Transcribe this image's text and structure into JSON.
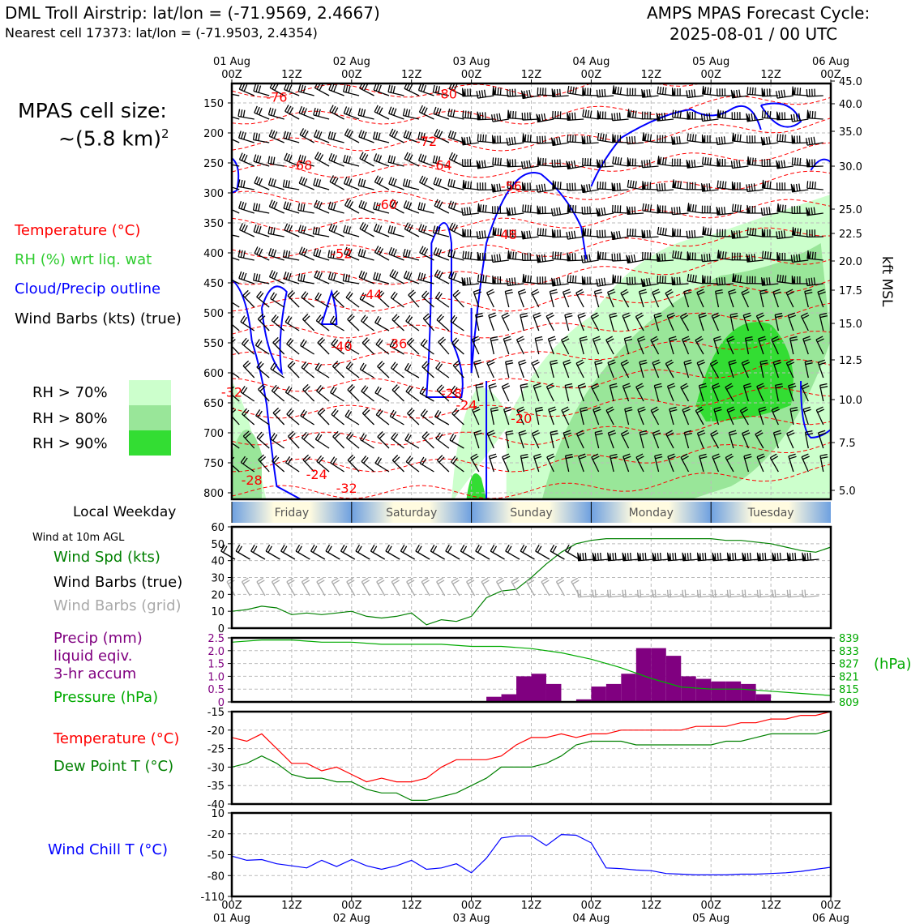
{
  "header": {
    "station_title": "DML Troll Airstrip: lat/lon = (-71.9569, 2.4667)",
    "cell_line": "Nearest cell 17373: lat/lon = (-71.9503, 2.4354)",
    "forecast_title": "AMPS MPAS Forecast Cycle:",
    "cycle_time": "2025-08-01 / 00 UTC"
  },
  "left_panel": {
    "cell_size_label": "MPAS cell size:",
    "cell_size_value": "~(5.8 km)",
    "cell_size_exp": "2",
    "legend_temperature": "Temperature (°C)",
    "legend_rh": "RH (%) wrt liq. wat",
    "legend_cloud": "Cloud/Precip outline",
    "legend_wind": "Wind Barbs (kts) (true)",
    "rh_70": "RH > 70%",
    "rh_80": "RH > 80%",
    "rh_90": "RH > 90%",
    "local_weekday": "Local Weekday",
    "wind_10m": "Wind at 10m AGL",
    "wind_spd": "Wind Spd (kts)",
    "wind_barbs_true": "Wind Barbs (true)",
    "wind_barbs_grid": "Wind Barbs (grid)",
    "precip_l1": "Precip (mm)",
    "precip_l2": "liquid eqiv.",
    "precip_l3": "3-hr accum",
    "pressure": "Pressure (hPa)",
    "pressure_unit": "(hPa)",
    "temp2": "Temperature (°C)",
    "dew": "Dew Point T (°C)",
    "chill": "Wind Chill T (°C)",
    "kft_label": "kft MSL"
  },
  "colors": {
    "temperature": "#ff0000",
    "dewpoint": "#008000",
    "rh_legend": "#2ecc2e",
    "cloud": "#0000ff",
    "precip": "#800080",
    "pressure": "#00aa00",
    "grid_barbs": "#a9a9a9",
    "rh70": "#ccffcc",
    "rh80": "#99e699",
    "rh90": "#33dd33"
  },
  "chart_data": [
    {
      "type": "heatmap",
      "name": "cross-section",
      "x_top_dates": [
        "01 Aug",
        "02 Aug",
        "03 Aug",
        "04 Aug",
        "05 Aug",
        "06 Aug"
      ],
      "x_top_ticks": [
        "00Z",
        "12Z",
        "00Z",
        "12Z",
        "00Z",
        "12Z",
        "00Z",
        "12Z",
        "00Z",
        "12Z",
        "00Z"
      ],
      "y_left_ticks": [
        "150",
        "200",
        "250",
        "300",
        "350",
        "400",
        "450",
        "500",
        "550",
        "600",
        "650",
        "700",
        "750",
        "800"
      ],
      "y_right_ticks": [
        "45.0",
        "40.0",
        "35.0",
        "30.0",
        "25.0",
        "22.5",
        "20.0",
        "17.5",
        "15.0",
        "12.5",
        "10.0",
        "7.5",
        "5.0"
      ],
      "temperature_labels": [
        {
          "text": "-76",
          "hour": 9,
          "hpa": 141
        },
        {
          "text": "-80",
          "hour": 43,
          "hpa": 136
        },
        {
          "text": "-72",
          "hour": 39,
          "hpa": 215
        },
        {
          "text": "-68",
          "hour": 14,
          "hpa": 255
        },
        {
          "text": "-64",
          "hour": 42,
          "hpa": 255
        },
        {
          "text": "-60",
          "hour": 31,
          "hpa": 320
        },
        {
          "text": "-56",
          "hour": 56,
          "hpa": 290
        },
        {
          "text": "-48",
          "hour": 55,
          "hpa": 370
        },
        {
          "text": "-52",
          "hour": 22,
          "hpa": 402
        },
        {
          "text": "-44",
          "hour": 28,
          "hpa": 470
        },
        {
          "text": "-40",
          "hour": 22,
          "hpa": 557
        },
        {
          "text": "-36",
          "hour": 33,
          "hpa": 552
        },
        {
          "text": "-32",
          "hour": 0,
          "hpa": 633
        },
        {
          "text": "-28",
          "hour": 44,
          "hpa": 635
        },
        {
          "text": "-24",
          "hour": 47,
          "hpa": 655
        },
        {
          "text": "-20",
          "hour": 58,
          "hpa": 677
        },
        {
          "text": "-24",
          "hour": 17,
          "hpa": 770
        },
        {
          "text": "-28",
          "hour": 4,
          "hpa": 780
        },
        {
          "text": "-32",
          "hour": 23,
          "hpa": 793
        }
      ]
    },
    {
      "type": "line",
      "name": "wind speed",
      "ylim": [
        0,
        60
      ],
      "yticks": [
        "60",
        "50",
        "40",
        "30",
        "20",
        "10",
        "0"
      ],
      "x_hours": [
        0,
        3,
        6,
        9,
        12,
        15,
        18,
        21,
        24,
        27,
        30,
        33,
        36,
        39,
        42,
        45,
        48,
        51,
        54,
        57,
        60
      ],
      "series": [
        {
          "name": "Wind Spd (kts)",
          "values": [
            10,
            11,
            13,
            12,
            8,
            9,
            8,
            9,
            10,
            7,
            6,
            7,
            9,
            2,
            5,
            4,
            7,
            18,
            22,
            23,
            30
          ]
        }
      ],
      "extra_x_hours": [
        63,
        66,
        69,
        72,
        75,
        78,
        81,
        84,
        87,
        90,
        93,
        96,
        99,
        102,
        105,
        108,
        111,
        114,
        117,
        120
      ],
      "extra_values": [
        38,
        45,
        50,
        52,
        53,
        53,
        53,
        53,
        53,
        53,
        53,
        53,
        52,
        52,
        51,
        50,
        48,
        46,
        45,
        48
      ]
    },
    {
      "type": "bar",
      "name": "precip and pressure",
      "ylim": [
        0,
        2.5
      ],
      "yticks": [
        "2.5",
        "2.0",
        "1.5",
        "1.0",
        "0.5",
        "0"
      ],
      "yticks_right": [
        "839",
        "833",
        "827",
        "821",
        "815",
        "809"
      ],
      "bars_hours": [
        54,
        57,
        60,
        63,
        66,
        69,
        72,
        75,
        78,
        81,
        84,
        87,
        90,
        93,
        96,
        99,
        102,
        105,
        108,
        111,
        114,
        117,
        120
      ],
      "precip": [
        0.2,
        0.3,
        1.0,
        1.1,
        0.7,
        0.0,
        0.1,
        0.6,
        0.7,
        1.1,
        2.1,
        2.1,
        1.8,
        1.0,
        0.9,
        0.8,
        0.8,
        0.7,
        0.3,
        0.0,
        0.0,
        0.0,
        0.0
      ],
      "pressure_hours": [
        0,
        6,
        12,
        18,
        24,
        30,
        36,
        42,
        48,
        54,
        60,
        66,
        72,
        78,
        84,
        90,
        96,
        102,
        108,
        114,
        120
      ],
      "pressure": [
        837,
        838,
        838,
        837,
        837,
        836,
        836,
        836,
        835,
        835,
        834,
        832,
        829,
        825,
        820,
        816,
        815,
        815,
        814,
        813,
        812
      ]
    },
    {
      "type": "line",
      "name": "temperature and dew point",
      "ylim": [
        -40,
        -15
      ],
      "yticks": [
        "-15",
        "-20",
        "-25",
        "-30",
        "-35",
        "-40"
      ],
      "x_hours": [
        0,
        3,
        6,
        9,
        12,
        15,
        18,
        21,
        24,
        27,
        30,
        33,
        36,
        39,
        42,
        45,
        48,
        51,
        54,
        57,
        60,
        63,
        66,
        69,
        72,
        75,
        78,
        81,
        84,
        87,
        90,
        93,
        96,
        99,
        102,
        105,
        108,
        111,
        114,
        117,
        120
      ],
      "series": [
        {
          "name": "Temperature (°C)",
          "values": [
            -22,
            -23,
            -21,
            -25,
            -29,
            -29,
            -31,
            -30,
            -32,
            -34,
            -33,
            -34,
            -34,
            -33,
            -30,
            -28,
            -28,
            -28,
            -27,
            -24,
            -22,
            -22,
            -21,
            -22,
            -21,
            -21,
            -20,
            -20,
            -20,
            -20,
            -20,
            -19,
            -19,
            -19,
            -18,
            -18,
            -17,
            -17,
            -16,
            -16,
            -15
          ]
        },
        {
          "name": "Dew Point T (°C)",
          "values": [
            -30,
            -29,
            -27,
            -29,
            -32,
            -33,
            -33,
            -34,
            -34,
            -36,
            -37,
            -37,
            -39,
            -39,
            -38,
            -37,
            -35,
            -33,
            -30,
            -30,
            -30,
            -29,
            -27,
            -24,
            -23,
            -23,
            -23,
            -24,
            -24,
            -24,
            -24,
            -24,
            -24,
            -23,
            -23,
            -22,
            -21,
            -21,
            -21,
            -21,
            -20
          ]
        }
      ]
    },
    {
      "type": "line",
      "name": "wind chill",
      "ylim": [
        -110,
        10
      ],
      "yticks": [
        "10",
        "-20",
        "-50",
        "-80",
        "-110"
      ],
      "x_hours": [
        0,
        3,
        6,
        9,
        12,
        15,
        18,
        21,
        24,
        27,
        30,
        33,
        36,
        39,
        42,
        45,
        48,
        51,
        54,
        57,
        60,
        63,
        66,
        69,
        72,
        75,
        78,
        81,
        84,
        87,
        90,
        93,
        96,
        99,
        102,
        105,
        108,
        111,
        114,
        117,
        120
      ],
      "series": [
        {
          "name": "Wind Chill T (°C)",
          "values": [
            -52,
            -58,
            -57,
            -63,
            -66,
            -69,
            -58,
            -67,
            -57,
            -66,
            -71,
            -66,
            -58,
            -71,
            -69,
            -63,
            -76,
            -55,
            -26,
            -23,
            -23,
            -37,
            -21,
            -22,
            -33,
            -69,
            -70,
            -72,
            -73,
            -77,
            -78,
            -79,
            -79,
            -79,
            -78,
            -78,
            -77,
            -76,
            -74,
            -71,
            -68
          ]
        }
      ]
    }
  ],
  "weekday_bar": [
    "Friday",
    "Saturday",
    "Sunday",
    "Monday",
    "Tuesday"
  ],
  "bottom_axis": {
    "ticks": [
      "00Z",
      "12Z",
      "00Z",
      "12Z",
      "00Z",
      "12Z",
      "00Z",
      "12Z",
      "00Z",
      "12Z",
      "00Z"
    ],
    "dates": [
      "01 Aug",
      "02 Aug",
      "03 Aug",
      "04 Aug",
      "05 Aug",
      "06 Aug"
    ]
  }
}
